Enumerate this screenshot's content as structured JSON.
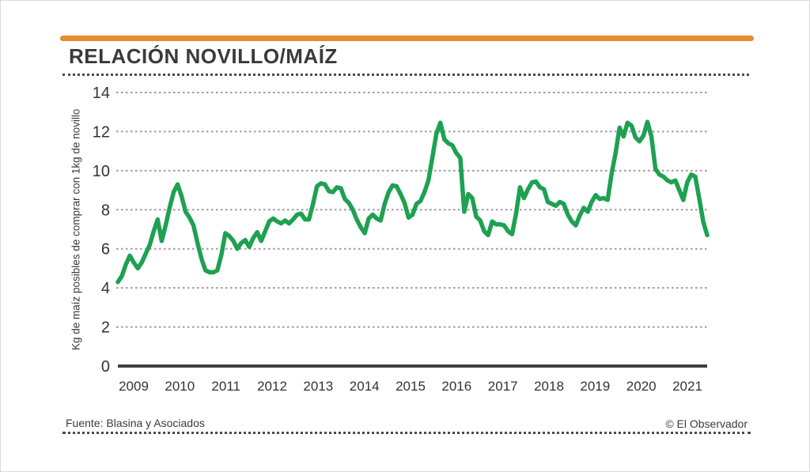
{
  "header": {
    "title": "RELACIÓN NOVILLO/MAÍZ"
  },
  "footer": {
    "source": "Fuente: Blasina y Asociados",
    "credit": "© El Observador"
  },
  "colors": {
    "accent_orange": "#e78b2f",
    "line_green": "#1ea151",
    "grid_gray": "#9b9b9b",
    "axis_dark": "#3f3f3f",
    "text_dark": "#3a3a3a"
  },
  "chart_data": {
    "type": "line",
    "title": "RELACIÓN NOVILLO/MAÍZ",
    "xlabel": "",
    "ylabel": "Kg de maíz posibles de comprar con 1kg de novillo",
    "ylim": [
      0,
      14
    ],
    "yticks": [
      0,
      2,
      4,
      6,
      8,
      10,
      12,
      14
    ],
    "xticks": [
      "2009",
      "2010",
      "2011",
      "2012",
      "2013",
      "2014",
      "2015",
      "2016",
      "2017",
      "2018",
      "2019",
      "2020",
      "2021"
    ],
    "grid": "horizontal-dashed",
    "legend": "none",
    "series": [
      {
        "name": "Relación novillo/maíz",
        "frequency": "monthly",
        "start": "2009-01",
        "end": "2021-05",
        "values": [
          4.3,
          4.6,
          5.2,
          5.65,
          5.3,
          5.0,
          5.3,
          5.75,
          6.2,
          6.9,
          7.5,
          6.4,
          7.2,
          8.1,
          8.9,
          9.3,
          8.7,
          7.9,
          7.6,
          7.2,
          6.3,
          5.5,
          4.9,
          4.8,
          4.8,
          4.9,
          5.7,
          6.8,
          6.65,
          6.4,
          6.0,
          6.3,
          6.45,
          6.1,
          6.55,
          6.85,
          6.4,
          6.9,
          7.4,
          7.55,
          7.4,
          7.3,
          7.45,
          7.3,
          7.5,
          7.75,
          7.8,
          7.5,
          7.5,
          8.3,
          9.2,
          9.35,
          9.3,
          8.95,
          8.9,
          9.15,
          9.1,
          8.55,
          8.35,
          8.0,
          7.5,
          7.1,
          6.8,
          7.55,
          7.75,
          7.55,
          7.45,
          8.3,
          8.9,
          9.25,
          9.2,
          8.8,
          8.35,
          7.6,
          7.75,
          8.3,
          8.45,
          8.9,
          9.5,
          10.7,
          11.9,
          12.45,
          11.6,
          11.4,
          11.3,
          10.9,
          10.65,
          7.9,
          8.8,
          8.6,
          7.65,
          7.45,
          6.9,
          6.7,
          7.4,
          7.25,
          7.25,
          7.2,
          6.9,
          6.75,
          7.8,
          9.15,
          8.6,
          9.05,
          9.4,
          9.45,
          9.15,
          9.05,
          8.4,
          8.3,
          8.2,
          8.4,
          8.3,
          7.75,
          7.4,
          7.2,
          7.7,
          8.1,
          7.9,
          8.4,
          8.75,
          8.55,
          8.6,
          8.5,
          9.85,
          10.9,
          12.2,
          11.75,
          12.45,
          12.3,
          11.7,
          11.5,
          11.8,
          12.5,
          11.75,
          10.1,
          9.8,
          9.7,
          9.5,
          9.4,
          9.5,
          9.0,
          8.5,
          9.4,
          9.8,
          9.7,
          8.6,
          7.4,
          6.7
        ]
      }
    ]
  }
}
